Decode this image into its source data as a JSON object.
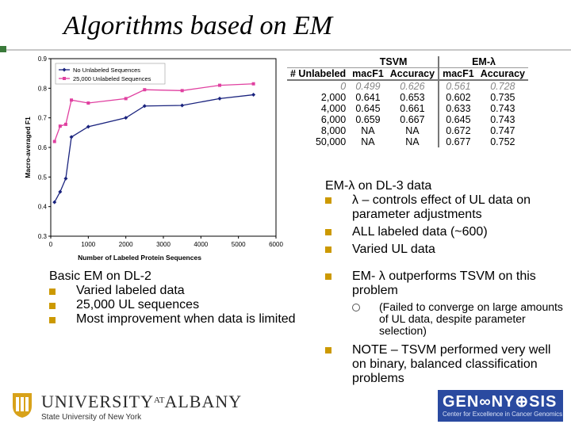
{
  "slide": {
    "title": "Algorithms based on EM"
  },
  "table": {
    "group_headers": [
      "TSVM",
      "EM-λ"
    ],
    "col_headers": [
      "# Unlabeled",
      "macF1",
      "Accuracy",
      "macF1",
      "Accuracy"
    ],
    "rows": [
      [
        "0",
        "0.499",
        "0.626",
        "0.561",
        "0.728"
      ],
      [
        "2,000",
        "0.641",
        "0.653",
        "0.602",
        "0.735"
      ],
      [
        "4,000",
        "0.645",
        "0.661",
        "0.633",
        "0.743"
      ],
      [
        "6,000",
        "0.659",
        "0.667",
        "0.645",
        "0.743"
      ],
      [
        "8,000",
        "NA",
        "NA",
        "0.672",
        "0.747"
      ],
      [
        "50,000",
        "NA",
        "NA",
        "0.677",
        "0.752"
      ]
    ]
  },
  "left_text": {
    "heading": "Basic EM on DL-2",
    "items": [
      "Varied labeled data",
      "25,000 UL sequences",
      "Most improvement when data is limited"
    ]
  },
  "right_text": {
    "heading": "EM-λ on DL-3 data",
    "item1": "λ – controls effect of UL data on parameter adjustments",
    "item2": "ALL labeled data (~600)",
    "item3": "Varied UL data",
    "item4": "EM- λ outperforms TSVM on this problem",
    "sub1": "(Failed to converge on large amounts of UL data, despite parameter selection)",
    "item5": "NOTE – TSVM performed very well on binary, balanced classification problems"
  },
  "logos": {
    "university_a": "UNIVERSITY",
    "university_at": "AT",
    "university_b": "ALBANY",
    "university_sub": "State University of New York",
    "genomics_title": "GEN∞NY⊕SIS",
    "genomics_sub": "Center for Excellence in Cancer Genomics"
  },
  "chart_data": {
    "type": "line",
    "xlabel": "Number of Labeled Protein Sequences",
    "ylabel": "Macro-averaged F1",
    "xlim": [
      0,
      6000
    ],
    "ylim": [
      0.3,
      0.9
    ],
    "xticks": [
      "0",
      "1000",
      "2000",
      "3000",
      "4000",
      "5000",
      "6000"
    ],
    "yticks": [
      "0.3",
      "0.4",
      "0.5",
      "0.6",
      "0.7",
      "0.8",
      "0.9"
    ],
    "legend": "top-left",
    "series": [
      {
        "name": "No Unlabeled Sequences",
        "color": "#1a237e",
        "x": [
          100,
          250,
          400,
          550,
          1000,
          2000,
          2500,
          3500,
          4500,
          5400
        ],
        "y": [
          0.415,
          0.45,
          0.495,
          0.635,
          0.67,
          0.7,
          0.74,
          0.742,
          0.765,
          0.778
        ]
      },
      {
        "name": "25,000 Unlabeled Sequences",
        "color": "#e040a0",
        "x": [
          100,
          250,
          400,
          550,
          1000,
          2000,
          2500,
          3500,
          4500,
          5400
        ],
        "y": [
          0.62,
          0.672,
          0.678,
          0.76,
          0.75,
          0.765,
          0.795,
          0.792,
          0.81,
          0.815
        ]
      }
    ]
  }
}
